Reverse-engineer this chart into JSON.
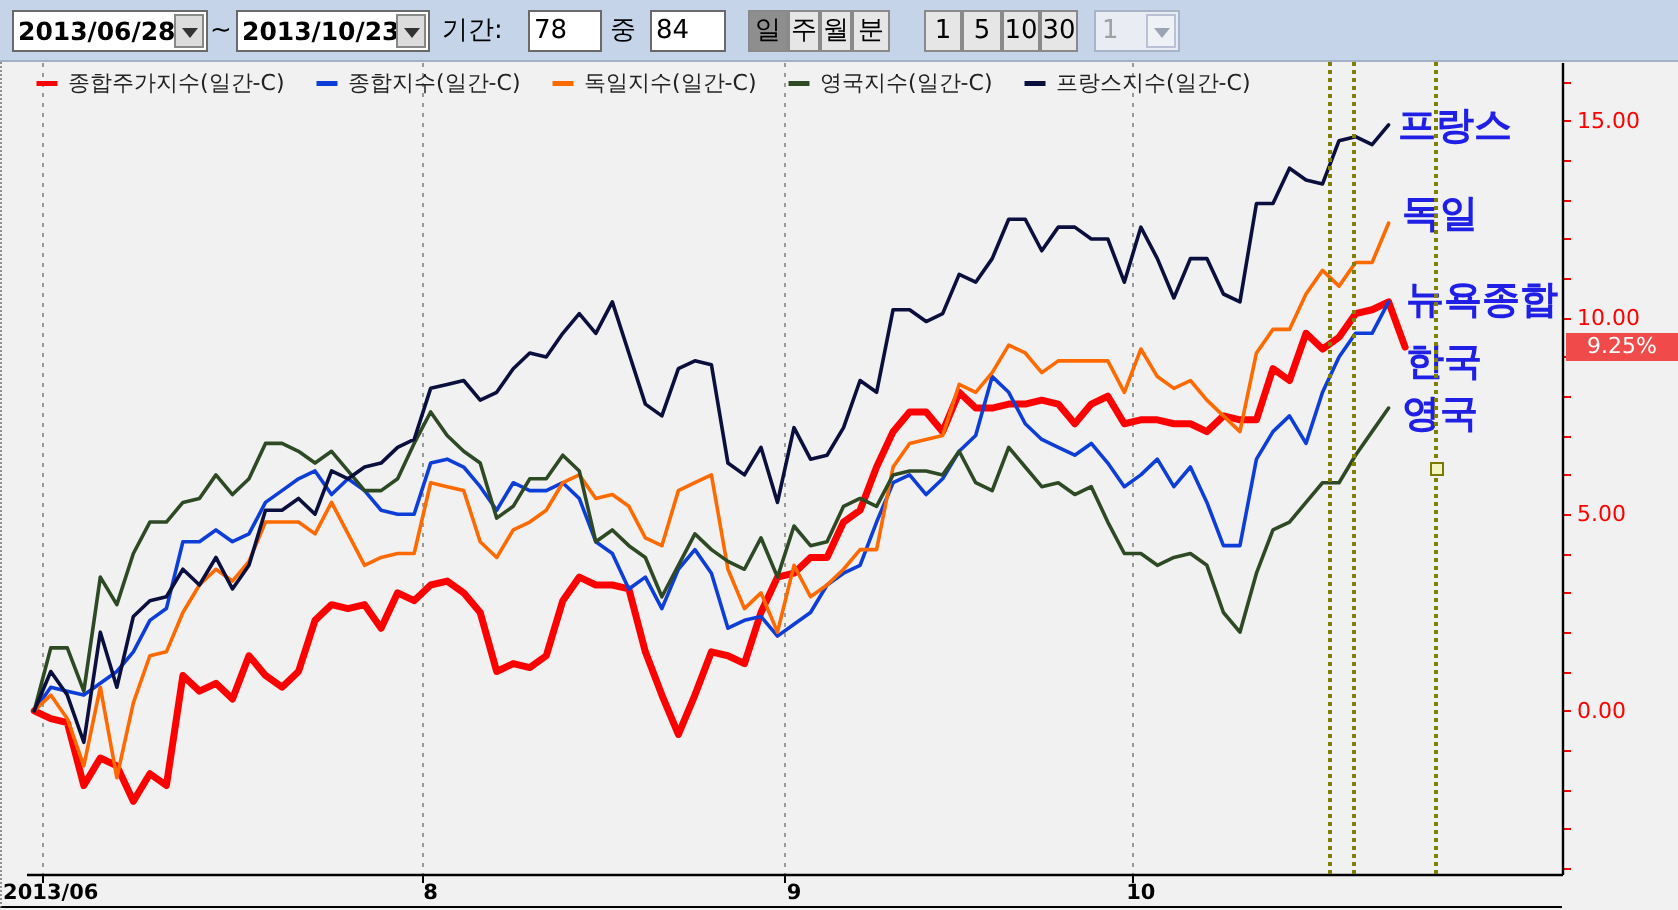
{
  "chart_data": {
    "type": "line",
    "categories": [
      null,
      "2013/06",
      null,
      null,
      null,
      null,
      null,
      null,
      null,
      null,
      null,
      null,
      null,
      null,
      null,
      null,
      null,
      null,
      null,
      null,
      null,
      null,
      null,
      null,
      "8",
      null,
      null,
      null,
      null,
      null,
      null,
      null,
      null,
      null,
      null,
      null,
      null,
      null,
      null,
      null,
      null,
      null,
      null,
      null,
      null,
      null,
      "9",
      null,
      null,
      null,
      null,
      null,
      null,
      null,
      null,
      null,
      null,
      null,
      null,
      null,
      null,
      null,
      null,
      null,
      null,
      null,
      null,
      "10",
      null,
      null,
      null,
      null,
      null,
      null,
      null,
      null,
      null,
      null,
      null,
      null,
      null,
      null,
      null,
      null,
      null,
      null,
      null,
      null,
      null,
      null,
      null,
      null,
      null
    ],
    "ylim": [
      -4.15,
      16.5
    ],
    "yticks": [
      {
        "value": -4,
        "label": null
      },
      {
        "value": -3,
        "label": null
      },
      {
        "value": -2,
        "label": null
      },
      {
        "value": -1,
        "label": null
      },
      {
        "value": 0,
        "label": "0.00"
      },
      {
        "value": 1,
        "label": null
      },
      {
        "value": 2,
        "label": null
      },
      {
        "value": 3,
        "label": null
      },
      {
        "value": 4,
        "label": null
      },
      {
        "value": 5,
        "label": "5.00"
      },
      {
        "value": 6,
        "label": null
      },
      {
        "value": 7,
        "label": null
      },
      {
        "value": 8,
        "label": null
      },
      {
        "value": 9,
        "label": null
      },
      {
        "value": 10,
        "label": "10.00"
      },
      {
        "value": 11,
        "label": null
      },
      {
        "value": 12,
        "label": null
      },
      {
        "value": 13,
        "label": null
      },
      {
        "value": 14,
        "label": null
      },
      {
        "value": 15,
        "label": "15.00"
      },
      {
        "value": 16,
        "label": null
      }
    ],
    "grid": "x",
    "legend": "top left",
    "series": [
      {
        "name": "종합주가지수(일간-C)",
        "color": "#ff0000",
        "values": [
          0,
          -0.2,
          -0.3,
          -1.9,
          -1.2,
          -1.4,
          -2.3,
          -1.6,
          -1.9,
          0.9,
          0.5,
          0.7,
          0.3,
          1.4,
          0.9,
          0.6,
          1.0,
          2.3,
          2.7,
          2.6,
          2.7,
          2.1,
          3.0,
          2.8,
          3.2,
          3.3,
          3.0,
          2.5,
          1.0,
          1.2,
          1.1,
          1.4,
          2.8,
          3.4,
          3.2,
          3.2,
          3.1,
          1.5,
          0.4,
          -0.6,
          0.4,
          1.5,
          1.4,
          1.2,
          2.5,
          3.4,
          3.5,
          3.9,
          3.9,
          4.8,
          5.1,
          6.2,
          7.1,
          7.6,
          7.6,
          7.1,
          8.1,
          7.7,
          7.7,
          7.8,
          7.8,
          7.9,
          7.8,
          7.3,
          7.8,
          8.0,
          7.3,
          7.4,
          7.4,
          7.3,
          7.3,
          7.1,
          7.5,
          7.4,
          7.4,
          8.7,
          8.4,
          9.6,
          9.2,
          9.5,
          10.1,
          10.2,
          10.4,
          9.25,
          null,
          null,
          null,
          null,
          null,
          null,
          null,
          null,
          null
        ]
      },
      {
        "name": "종합지수(일간-C)",
        "color": "#0d3fd8",
        "values": [
          0,
          0.6,
          0.5,
          0.4,
          0.7,
          1.0,
          1.5,
          2.3,
          2.6,
          4.3,
          4.3,
          4.6,
          4.3,
          4.5,
          5.3,
          5.6,
          5.9,
          6.1,
          5.5,
          5.9,
          5.6,
          5.1,
          5.0,
          5.0,
          6.3,
          6.4,
          6.2,
          5.7,
          5.1,
          5.8,
          5.6,
          5.6,
          5.8,
          5.4,
          4.3,
          4.0,
          3.1,
          3.4,
          2.6,
          3.6,
          4.1,
          3.5,
          2.1,
          2.3,
          2.4,
          1.9,
          2.2,
          2.5,
          3.2,
          3.5,
          3.7,
          4.8,
          5.8,
          6.0,
          5.5,
          5.9,
          6.6,
          7.0,
          8.5,
          8.1,
          7.3,
          6.9,
          6.7,
          6.5,
          6.8,
          6.3,
          5.7,
          6.0,
          6.4,
          5.7,
          6.2,
          5.3,
          4.2,
          4.2,
          6.4,
          7.1,
          7.5,
          6.8,
          8.1,
          9.0,
          9.6,
          9.6,
          10.4,
          null,
          null,
          null,
          null,
          null,
          null,
          null,
          null,
          null,
          null
        ]
      },
      {
        "name": "독일지수(일간-C)",
        "color": "#ff6a00",
        "values": [
          0,
          0.4,
          -0.2,
          -1.4,
          0.6,
          -1.7,
          0.2,
          1.4,
          1.5,
          2.5,
          3.2,
          3.6,
          3.3,
          3.8,
          4.8,
          4.8,
          4.8,
          4.5,
          5.3,
          4.5,
          3.7,
          3.9,
          4.0,
          4.0,
          5.8,
          5.7,
          5.6,
          4.3,
          3.9,
          4.6,
          4.8,
          5.1,
          5.8,
          6.0,
          5.4,
          5.5,
          5.2,
          4.4,
          4.2,
          5.6,
          5.8,
          6.0,
          3.6,
          2.6,
          3.0,
          2.0,
          3.7,
          2.9,
          3.2,
          3.6,
          4.1,
          4.1,
          6.2,
          6.8,
          6.9,
          7.0,
          8.3,
          8.1,
          8.6,
          9.3,
          9.1,
          8.6,
          8.9,
          8.9,
          8.9,
          8.9,
          8.1,
          9.2,
          8.5,
          8.2,
          8.4,
          7.9,
          7.5,
          7.1,
          9.1,
          9.7,
          9.7,
          10.6,
          11.2,
          10.8,
          11.4,
          11.4,
          12.4,
          null,
          null,
          null,
          null,
          null,
          null,
          null,
          null,
          null,
          null
        ]
      },
      {
        "name": "영국지수(일간-C)",
        "color": "#2e4a24",
        "values": [
          0,
          1.6,
          1.6,
          0.5,
          3.4,
          2.7,
          4.0,
          4.8,
          4.8,
          5.3,
          5.4,
          6.0,
          5.5,
          5.9,
          6.8,
          6.8,
          6.6,
          6.3,
          6.6,
          6.1,
          5.6,
          5.6,
          5.9,
          6.8,
          7.6,
          7.0,
          6.6,
          6.3,
          4.9,
          5.2,
          5.9,
          5.9,
          6.5,
          6.1,
          4.3,
          4.6,
          4.2,
          3.9,
          2.9,
          3.7,
          4.5,
          4.1,
          3.8,
          3.6,
          4.4,
          3.4,
          4.7,
          4.2,
          4.3,
          5.2,
          5.4,
          5.2,
          6.0,
          6.1,
          6.1,
          6.0,
          6.6,
          5.8,
          5.6,
          6.7,
          6.2,
          5.7,
          5.8,
          5.5,
          5.7,
          4.8,
          4.0,
          4.0,
          3.7,
          3.9,
          4.0,
          3.7,
          2.5,
          2.0,
          3.5,
          4.6,
          4.8,
          5.3,
          5.8,
          5.8,
          6.5,
          7.1,
          7.7,
          null,
          null,
          null,
          null,
          null,
          null,
          null,
          null,
          null,
          null
        ]
      },
      {
        "name": "프랑스지수(일간-C)",
        "color": "#0b0f3d",
        "values": [
          0,
          1.0,
          0.4,
          -0.8,
          2.0,
          0.6,
          2.4,
          2.8,
          2.9,
          3.6,
          3.2,
          3.9,
          3.1,
          3.7,
          5.1,
          5.1,
          5.4,
          5.0,
          6.1,
          5.9,
          6.2,
          6.3,
          6.7,
          6.9,
          8.2,
          8.3,
          8.4,
          7.9,
          8.1,
          8.7,
          9.1,
          9.0,
          9.6,
          10.1,
          9.6,
          10.4,
          9.1,
          7.8,
          7.5,
          8.7,
          8.9,
          8.8,
          6.3,
          6.0,
          6.7,
          5.3,
          7.2,
          6.4,
          6.5,
          7.2,
          8.4,
          8.1,
          10.2,
          10.2,
          9.9,
          10.1,
          11.1,
          10.9,
          11.5,
          12.5,
          12.5,
          11.7,
          12.3,
          12.3,
          12.0,
          12.0,
          10.9,
          12.3,
          11.5,
          10.5,
          11.5,
          11.5,
          10.6,
          10.4,
          12.9,
          12.9,
          13.8,
          13.5,
          13.4,
          14.5,
          14.6,
          14.4,
          14.9,
          null,
          null,
          null,
          null,
          null,
          null,
          null,
          null,
          null,
          null
        ]
      }
    ],
    "annotations": [
      "2013/06/28",
      "~",
      "2013/10/23",
      "기간:",
      "78",
      "중",
      "84",
      "일",
      "주",
      "월",
      "분",
      "1",
      "5",
      "10",
      "30",
      "1",
      "프랑스",
      "독일",
      "뉴욕종합",
      "한국",
      "영국",
      "9.25%"
    ]
  }
}
